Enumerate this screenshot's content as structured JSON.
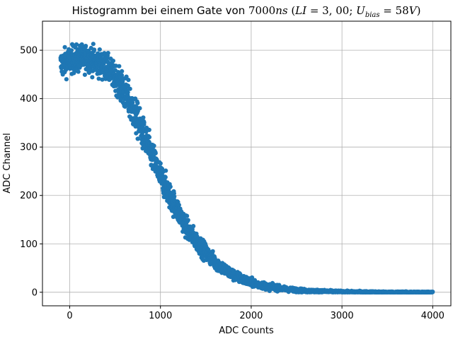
{
  "chart_data": {
    "type": "scatter",
    "title": {
      "prefix": "Histogramm bei einem Gate von ",
      "gate_value": "7000",
      "gate_unit": "ns",
      "paren_open": " (",
      "li_symbol": "LI",
      "li_eq": " = 3, 00; ",
      "u_symbol": "U",
      "u_sub": "bias",
      "u_eq": " = 58",
      "u_unit": "V",
      "paren_close": ")"
    },
    "xlabel": "ADC Counts",
    "ylabel": "ADC Channel",
    "xlim": [
      -300,
      4200
    ],
    "ylim": [
      -28,
      560
    ],
    "xticks": [
      0,
      1000,
      2000,
      3000,
      4000
    ],
    "yticks": [
      0,
      100,
      200,
      300,
      400,
      500
    ],
    "grid": true,
    "marker_color": "#1f77b4",
    "series": [
      {
        "description": "dense band of points following a falling sigmoid-like curve",
        "x_range": [
          -100,
          4000
        ],
        "envelope": [
          {
            "x": -100,
            "y": 470
          },
          {
            "x": 0,
            "y": 480
          },
          {
            "x": 200,
            "y": 485
          },
          {
            "x": 400,
            "y": 465
          },
          {
            "x": 500,
            "y": 445
          },
          {
            "x": 600,
            "y": 415
          },
          {
            "x": 700,
            "y": 375
          },
          {
            "x": 800,
            "y": 330
          },
          {
            "x": 900,
            "y": 285
          },
          {
            "x": 1000,
            "y": 240
          },
          {
            "x": 1100,
            "y": 200
          },
          {
            "x": 1200,
            "y": 165
          },
          {
            "x": 1300,
            "y": 130
          },
          {
            "x": 1400,
            "y": 105
          },
          {
            "x": 1500,
            "y": 82
          },
          {
            "x": 1600,
            "y": 63
          },
          {
            "x": 1700,
            "y": 48
          },
          {
            "x": 1800,
            "y": 36
          },
          {
            "x": 1900,
            "y": 27
          },
          {
            "x": 2000,
            "y": 20
          },
          {
            "x": 2200,
            "y": 11
          },
          {
            "x": 2400,
            "y": 6
          },
          {
            "x": 2600,
            "y": 3
          },
          {
            "x": 3000,
            "y": 1
          },
          {
            "x": 3500,
            "y": 0.3
          },
          {
            "x": 4000,
            "y": 0
          }
        ]
      }
    ]
  }
}
